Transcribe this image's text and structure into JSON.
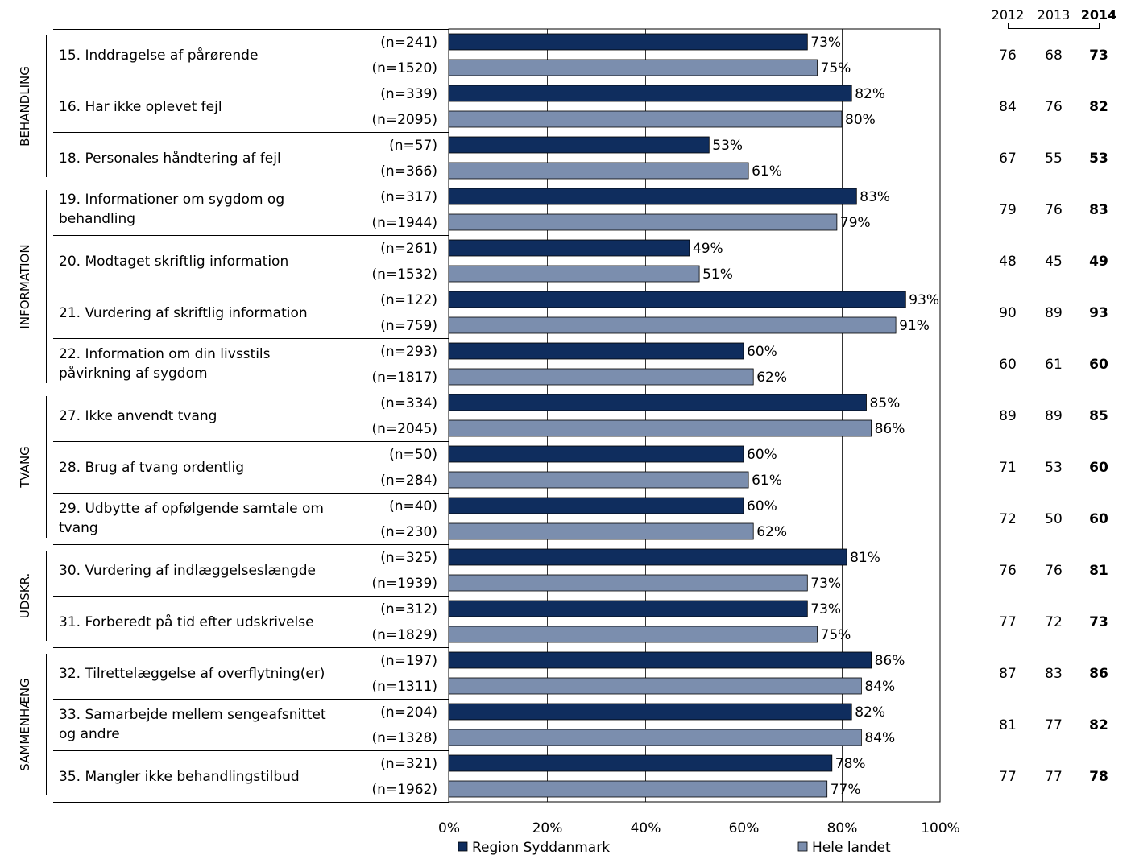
{
  "chart_data": {
    "type": "bar",
    "orientation": "horizontal",
    "xlim": [
      0,
      100
    ],
    "grid": true,
    "x_ticks": [
      "0%",
      "20%",
      "40%",
      "60%",
      "80%",
      "100%"
    ],
    "x_tick_values": [
      0,
      20,
      40,
      60,
      80,
      100
    ],
    "legend_position": "bottom",
    "series": [
      {
        "name": "Region Syddanmark",
        "color": "#0f2d5e"
      },
      {
        "name": "Hele landet",
        "color": "#7b8eae"
      }
    ],
    "year_headers": [
      "2012",
      "2013",
      "2014"
    ],
    "groups": [
      {
        "label": "BEHANDLING",
        "first": 0,
        "last": 2
      },
      {
        "label": "INFORMATION",
        "first": 3,
        "last": 6
      },
      {
        "label": "TVANG",
        "first": 7,
        "last": 9
      },
      {
        "label": "UDSKR.",
        "first": 10,
        "last": 11
      },
      {
        "label": "SAMMENHÆNG",
        "first": 12,
        "last": 14
      }
    ],
    "items": [
      {
        "label": [
          "15. Inddragelse af pårørende"
        ],
        "region_n": "(n=241)",
        "national_n": "(n=1520)",
        "region": 73,
        "national": 75,
        "region_label": "73%",
        "national_label": "75%",
        "years": [
          "76",
          "68",
          "73"
        ]
      },
      {
        "label": [
          "16. Har ikke oplevet fejl"
        ],
        "region_n": "(n=339)",
        "national_n": "(n=2095)",
        "region": 82,
        "national": 80,
        "region_label": "82%",
        "national_label": "80%",
        "years": [
          "84",
          "76",
          "82"
        ]
      },
      {
        "label": [
          "18. Personales håndtering af fejl"
        ],
        "region_n": "(n=57)",
        "national_n": "(n=366)",
        "region": 53,
        "national": 61,
        "region_label": "53%",
        "national_label": "61%",
        "years": [
          "67",
          "55",
          "53"
        ]
      },
      {
        "label": [
          "19. Informationer om sygdom og",
          "behandling"
        ],
        "region_n": "(n=317)",
        "national_n": "(n=1944)",
        "region": 83,
        "national": 79,
        "region_label": "83%",
        "national_label": "79%",
        "years": [
          "79",
          "76",
          "83"
        ]
      },
      {
        "label": [
          "20. Modtaget skriftlig information"
        ],
        "region_n": "(n=261)",
        "national_n": "(n=1532)",
        "region": 49,
        "national": 51,
        "region_label": "49%",
        "national_label": "51%",
        "years": [
          "48",
          "45",
          "49"
        ]
      },
      {
        "label": [
          "21. Vurdering af skriftlig information"
        ],
        "region_n": "(n=122)",
        "national_n": "(n=759)",
        "region": 93,
        "national": 91,
        "region_label": "93%",
        "national_label": "91%",
        "years": [
          "90",
          "89",
          "93"
        ]
      },
      {
        "label": [
          "22. Information om din livsstils",
          "påvirkning af sygdom"
        ],
        "region_n": "(n=293)",
        "national_n": "(n=1817)",
        "region": 60,
        "national": 62,
        "region_label": "60%",
        "national_label": "62%",
        "years": [
          "60",
          "61",
          "60"
        ]
      },
      {
        "label": [
          "27. Ikke anvendt tvang"
        ],
        "region_n": "(n=334)",
        "national_n": "(n=2045)",
        "region": 85,
        "national": 86,
        "region_label": "85%",
        "national_label": "86%",
        "years": [
          "89",
          "89",
          "85"
        ]
      },
      {
        "label": [
          "28. Brug af tvang ordentlig"
        ],
        "region_n": "(n=50)",
        "national_n": "(n=284)",
        "region": 60,
        "national": 61,
        "region_label": "60%",
        "national_label": "61%",
        "years": [
          "71",
          "53",
          "60"
        ]
      },
      {
        "label": [
          "29. Udbytte af opfølgende samtale om",
          "tvang"
        ],
        "region_n": "(n=40)",
        "national_n": "(n=230)",
        "region": 60,
        "national": 62,
        "region_label": "60%",
        "national_label": "62%",
        "years": [
          "72",
          "50",
          "60"
        ]
      },
      {
        "label": [
          "30. Vurdering af indlæggelseslængde"
        ],
        "region_n": "(n=325)",
        "national_n": "(n=1939)",
        "region": 81,
        "national": 73,
        "region_label": "81%",
        "national_label": "73%",
        "years": [
          "76",
          "76",
          "81"
        ]
      },
      {
        "label": [
          "31. Forberedt på tid efter udskrivelse"
        ],
        "region_n": "(n=312)",
        "national_n": "(n=1829)",
        "region": 73,
        "national": 75,
        "region_label": "73%",
        "national_label": "75%",
        "years": [
          "77",
          "72",
          "73"
        ]
      },
      {
        "label": [
          "32. Tilrettelæggelse af overflytning(er)"
        ],
        "region_n": "(n=197)",
        "national_n": "(n=1311)",
        "region": 86,
        "national": 84,
        "region_label": "86%",
        "national_label": "84%",
        "years": [
          "87",
          "83",
          "86"
        ]
      },
      {
        "label": [
          "33. Samarbejde mellem sengeafsnittet",
          "og andre"
        ],
        "region_n": "(n=204)",
        "national_n": "(n=1328)",
        "region": 82,
        "national": 84,
        "region_label": "82%",
        "national_label": "84%",
        "years": [
          "81",
          "77",
          "82"
        ]
      },
      {
        "label": [
          "35. Mangler ikke behandlingstilbud"
        ],
        "region_n": "(n=321)",
        "national_n": "(n=1962)",
        "region": 78,
        "national": 77,
        "region_label": "78%",
        "national_label": "77%",
        "years": [
          "77",
          "77",
          "78"
        ]
      }
    ]
  }
}
